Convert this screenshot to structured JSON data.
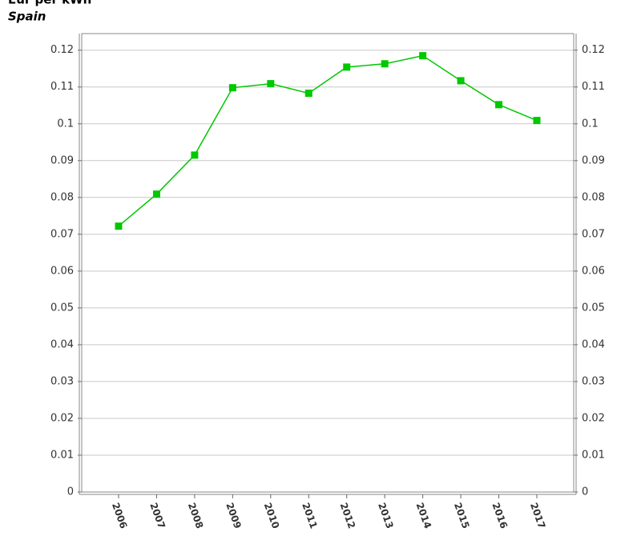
{
  "chart_data": {
    "type": "line",
    "title": "Eur per kWh",
    "subtitle": "Spain",
    "categories": [
      "2006",
      "2007",
      "2008",
      "2009",
      "2010",
      "2011",
      "2012",
      "2013",
      "2014",
      "2015",
      "2016",
      "2017"
    ],
    "series": [
      {
        "name": "Spain",
        "color": "#00c800",
        "values": [
          0.0722,
          0.0809,
          0.0915,
          0.1098,
          0.1109,
          0.1083,
          0.1154,
          0.1163,
          0.1185,
          0.1117,
          0.1052,
          0.1009
        ]
      }
    ],
    "ylim": [
      0,
      0.1245
    ],
    "yticks": [
      0,
      0.01,
      0.02,
      0.03,
      0.04,
      0.05,
      0.06,
      0.07,
      0.08,
      0.09,
      0.1,
      0.11,
      0.12
    ],
    "grid": true
  }
}
